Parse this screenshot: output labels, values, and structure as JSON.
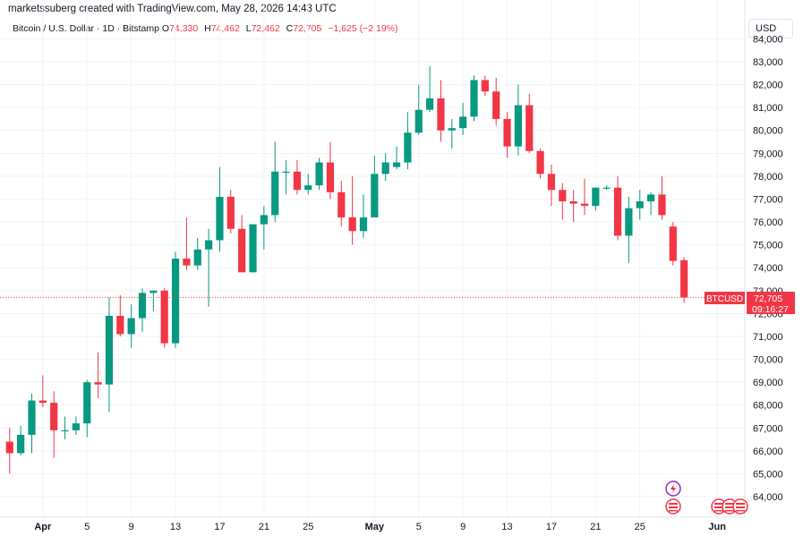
{
  "attribution": "marketssuberg created with TradingView.com, May 28, 2026 14:43 UTC",
  "legend": {
    "symbol": "Bitcoin / U.S. Dollar · 1D · Bitstamp",
    "open_label": "O",
    "open": "74,330",
    "high_label": "H",
    "high": "74,462",
    "low_label": "L",
    "low": "72,462",
    "close_label": "C",
    "close": "72,705",
    "change": "−1,625 (−2.19%)"
  },
  "currency": "USD",
  "price_tag": {
    "symbol": "BTCUSD",
    "price": "72,705",
    "countdown": "09:16:27"
  },
  "colors": {
    "up": "#089981",
    "down": "#f23645",
    "grid": "#f0f3fa"
  },
  "icons": [
    "lightning-event-icon",
    "us-flag-event-icon"
  ],
  "chart_data": {
    "type": "candlestick",
    "ylim": [
      63500,
      84300
    ],
    "y_ticks": [
      "64,000",
      "65,000",
      "66,000",
      "67,000",
      "68,000",
      "69,000",
      "70,000",
      "71,000",
      "72,000",
      "73,000",
      "74,000",
      "75,000",
      "76,000",
      "77,000",
      "78,000",
      "79,000",
      "80,000",
      "81,000",
      "82,000",
      "83,000",
      "84,000"
    ],
    "x_ticks": [
      {
        "label": "Apr",
        "idx": 3,
        "month": true
      },
      {
        "label": "5",
        "idx": 7
      },
      {
        "label": "9",
        "idx": 11
      },
      {
        "label": "13",
        "idx": 15
      },
      {
        "label": "17",
        "idx": 19
      },
      {
        "label": "21",
        "idx": 23
      },
      {
        "label": "25",
        "idx": 27
      },
      {
        "label": "May",
        "idx": 33,
        "month": true
      },
      {
        "label": "5",
        "idx": 37
      },
      {
        "label": "9",
        "idx": 41
      },
      {
        "label": "13",
        "idx": 45
      },
      {
        "label": "17",
        "idx": 49
      },
      {
        "label": "21",
        "idx": 53
      },
      {
        "label": "25",
        "idx": 57
      },
      {
        "label": "Jun",
        "idx": 64,
        "month": true
      }
    ],
    "last_price": 72705,
    "candles": [
      {
        "o": 66400,
        "h": 67000,
        "l": 65000,
        "c": 65900
      },
      {
        "o": 65900,
        "h": 67100,
        "l": 65800,
        "c": 66700
      },
      {
        "o": 66700,
        "h": 68500,
        "l": 65900,
        "c": 68200
      },
      {
        "o": 68200,
        "h": 69300,
        "l": 67900,
        "c": 68100
      },
      {
        "o": 68100,
        "h": 68600,
        "l": 65700,
        "c": 66900
      },
      {
        "o": 66900,
        "h": 67500,
        "l": 66500,
        "c": 66900
      },
      {
        "o": 66900,
        "h": 67500,
        "l": 66700,
        "c": 67200
      },
      {
        "o": 67200,
        "h": 69100,
        "l": 66600,
        "c": 69000
      },
      {
        "o": 69000,
        "h": 70300,
        "l": 68300,
        "c": 68900
      },
      {
        "o": 68900,
        "h": 72700,
        "l": 67700,
        "c": 71900
      },
      {
        "o": 71900,
        "h": 72800,
        "l": 71000,
        "c": 71100
      },
      {
        "o": 71100,
        "h": 72400,
        "l": 70500,
        "c": 71800
      },
      {
        "o": 71800,
        "h": 73100,
        "l": 71200,
        "c": 72900
      },
      {
        "o": 72900,
        "h": 73000,
        "l": 72100,
        "c": 73000
      },
      {
        "o": 73000,
        "h": 73100,
        "l": 70500,
        "c": 70700
      },
      {
        "o": 70700,
        "h": 74700,
        "l": 70500,
        "c": 74400
      },
      {
        "o": 74400,
        "h": 76200,
        "l": 73900,
        "c": 74100
      },
      {
        "o": 74100,
        "h": 75300,
        "l": 73900,
        "c": 74800
      },
      {
        "o": 74800,
        "h": 75700,
        "l": 72300,
        "c": 75200
      },
      {
        "o": 75200,
        "h": 78400,
        "l": 74700,
        "c": 77100
      },
      {
        "o": 77100,
        "h": 77400,
        "l": 75500,
        "c": 75700
      },
      {
        "o": 75700,
        "h": 76300,
        "l": 73800,
        "c": 73800
      },
      {
        "o": 73800,
        "h": 75900,
        "l": 73800,
        "c": 75900
      },
      {
        "o": 75900,
        "h": 76700,
        "l": 74800,
        "c": 76300
      },
      {
        "o": 76300,
        "h": 79500,
        "l": 76000,
        "c": 78200
      },
      {
        "o": 78200,
        "h": 78700,
        "l": 77200,
        "c": 78200
      },
      {
        "o": 78200,
        "h": 78700,
        "l": 77200,
        "c": 77400
      },
      {
        "o": 77400,
        "h": 78100,
        "l": 77200,
        "c": 77600
      },
      {
        "o": 77600,
        "h": 78800,
        "l": 77400,
        "c": 78600
      },
      {
        "o": 78600,
        "h": 79500,
        "l": 77000,
        "c": 77300
      },
      {
        "o": 77300,
        "h": 77800,
        "l": 75800,
        "c": 76200
      },
      {
        "o": 76200,
        "h": 78000,
        "l": 75000,
        "c": 75600
      },
      {
        "o": 75600,
        "h": 77200,
        "l": 75300,
        "c": 76200
      },
      {
        "o": 76200,
        "h": 78900,
        "l": 76200,
        "c": 78100
      },
      {
        "o": 78100,
        "h": 79000,
        "l": 77800,
        "c": 78600
      },
      {
        "o": 78400,
        "h": 79300,
        "l": 78300,
        "c": 78600
      },
      {
        "o": 78600,
        "h": 80800,
        "l": 78300,
        "c": 79900
      },
      {
        "o": 79900,
        "h": 82000,
        "l": 79800,
        "c": 80900
      },
      {
        "o": 80900,
        "h": 82800,
        "l": 80800,
        "c": 81400
      },
      {
        "o": 81400,
        "h": 82200,
        "l": 79500,
        "c": 80000
      },
      {
        "o": 80000,
        "h": 80500,
        "l": 79200,
        "c": 80100
      },
      {
        "o": 80100,
        "h": 81200,
        "l": 79800,
        "c": 80600
      },
      {
        "o": 80600,
        "h": 82400,
        "l": 80400,
        "c": 82200
      },
      {
        "o": 82200,
        "h": 82400,
        "l": 81500,
        "c": 81700
      },
      {
        "o": 81700,
        "h": 82300,
        "l": 80200,
        "c": 80500
      },
      {
        "o": 80500,
        "h": 80800,
        "l": 78800,
        "c": 79300
      },
      {
        "o": 79300,
        "h": 82000,
        "l": 78900,
        "c": 81100
      },
      {
        "o": 81100,
        "h": 81600,
        "l": 79000,
        "c": 79100
      },
      {
        "o": 79100,
        "h": 79200,
        "l": 77900,
        "c": 78100
      },
      {
        "o": 78100,
        "h": 78500,
        "l": 76700,
        "c": 77400
      },
      {
        "o": 77400,
        "h": 77700,
        "l": 76100,
        "c": 76900
      },
      {
        "o": 76900,
        "h": 77400,
        "l": 76000,
        "c": 76800
      },
      {
        "o": 76800,
        "h": 77900,
        "l": 76300,
        "c": 76700
      },
      {
        "o": 76700,
        "h": 77500,
        "l": 76500,
        "c": 77500
      },
      {
        "o": 77500,
        "h": 77600,
        "l": 77400,
        "c": 77500
      },
      {
        "o": 77500,
        "h": 78000,
        "l": 75200,
        "c": 75400
      },
      {
        "o": 75400,
        "h": 77100,
        "l": 74200,
        "c": 76600
      },
      {
        "o": 76600,
        "h": 77400,
        "l": 76100,
        "c": 76900
      },
      {
        "o": 76900,
        "h": 77300,
        "l": 76300,
        "c": 77200
      },
      {
        "o": 77200,
        "h": 78000,
        "l": 76100,
        "c": 76300
      },
      {
        "o": 75800,
        "h": 76000,
        "l": 74100,
        "c": 74300
      },
      {
        "o": 74330,
        "h": 74462,
        "l": 72462,
        "c": 72705
      }
    ]
  }
}
